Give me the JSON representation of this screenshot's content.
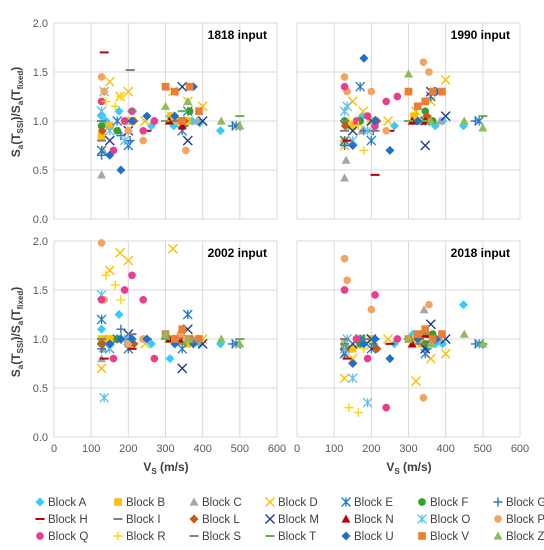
{
  "chart_data": {
    "type": "scatter",
    "xlabel": "V_S (m/s)",
    "ylabel": "S_a(T_SSI)/S_a(T_fixed)",
    "xlim": [
      0,
      600
    ],
    "ylim": [
      0,
      2
    ],
    "xticks": [
      "0",
      "100",
      "200",
      "300",
      "400",
      "500",
      "600"
    ],
    "yticks": [
      "0.0",
      "0.5",
      "1.0",
      "1.5",
      "2.0"
    ],
    "grid": true,
    "legend_position": "bottom",
    "panels": [
      {
        "title": "1818 input"
      },
      {
        "title": "1990 input"
      },
      {
        "title": "2002 input"
      },
      {
        "title": "2018 input"
      }
    ],
    "series": [
      {
        "name": "Block A",
        "marker": "diamond",
        "color": "#33CCFF",
        "x": [
          128,
          140,
          175,
          200,
          262,
          312,
          322,
          372,
          392,
          448
        ],
        "values": [
          [
            1.05,
            1.0,
            1.1,
            1.0,
            0.95,
            1.05,
            0.95,
            1.0,
            0.98,
            0.9
          ],
          [
            1.0,
            0.95,
            1.05,
            1.0,
            0.95,
            1.0,
            1.0,
            0.95,
            1.0,
            0.95
          ],
          [
            1.1,
            1.0,
            1.25,
            1.0,
            0.95,
            0.8,
            1.0,
            1.0,
            0.95,
            0.95
          ],
          [
            0.95,
            0.9,
            1.0,
            1.0,
            0.95,
            1.05,
            1.0,
            0.95,
            0.95,
            1.35
          ]
        ]
      },
      {
        "name": "Block B",
        "marker": "square",
        "color": "#FFC000",
        "x": [
          128,
          150,
          200,
          315,
          335,
          358
        ],
        "values": [
          [
            0.85,
            0.95,
            1.0,
            1.05,
            1.0,
            1.0
          ],
          [
            0.8,
            0.95,
            1.0,
            1.05,
            1.0,
            1.0
          ],
          [
            1.0,
            1.0,
            0.95,
            1.0,
            1.0,
            0.95
          ],
          [
            0.95,
            0.9,
            1.0,
            1.0,
            0.95,
            0.95
          ]
        ]
      },
      {
        "name": "Block C",
        "marker": "triangle",
        "color": "#A6A6A6",
        "x": [
          128,
          132,
          175,
          342,
          385
        ],
        "values": [
          [
            0.45,
            0.7,
            0.9,
            1.0,
            1.0
          ],
          [
            0.42,
            0.6,
            0.9,
            1.0,
            1.0
          ],
          [
            0.8,
            0.9,
            1.0,
            1.0,
            1.0
          ],
          [
            0.85,
            0.9,
            1.0,
            1.3,
            1.0
          ]
        ]
      },
      {
        "name": "Block D",
        "marker": "x",
        "color": "#FFC000",
        "x": [
          128,
          150,
          178,
          200,
          245,
          320,
          360,
          400
        ],
        "values": [
          [
            0.7,
            1.4,
            1.25,
            1.3,
            1.0,
            1.3,
            1.2,
            1.15
          ],
          [
            0.75,
            1.2,
            1.1,
            1.0,
            1.0,
            1.1,
            1.2,
            1.42
          ],
          [
            0.7,
            1.7,
            1.88,
            1.8,
            0.95,
            1.92,
            1.0,
            1.0
          ],
          [
            0.6,
            0.8,
            1.0,
            0.95,
            1.0,
            0.57,
            0.8,
            0.85
          ]
        ]
      },
      {
        "name": "Block E",
        "marker": "star",
        "color": "#1F77D0",
        "x": [
          128,
          170,
          200,
          345,
          360,
          490
        ],
        "values": [
          [
            0.7,
            1.0,
            0.75,
            0.9,
            1.1,
            0.95
          ],
          [
            0.8,
            1.35,
            0.8,
            1.0,
            1.25,
            1.0
          ],
          [
            1.2,
            1.0,
            0.9,
            0.9,
            1.25,
            0.95
          ],
          [
            0.85,
            1.0,
            0.9,
            0.85,
            1.0,
            0.95
          ]
        ]
      },
      {
        "name": "Block F",
        "marker": "circle",
        "color": "#33A02C",
        "x": [
          128,
          170,
          345,
          365
        ],
        "values": [
          [
            0.95,
            0.9,
            1.0,
            1.1
          ],
          [
            1.0,
            1.0,
            1.1,
            1.0
          ],
          [
            0.95,
            1.0,
            1.0,
            1.0
          ],
          [
            0.9,
            0.95,
            0.95,
            1.05
          ]
        ]
      },
      {
        "name": "Block G",
        "marker": "plus",
        "color": "#2E75B6",
        "x": [
          128,
          180,
          205,
          350,
          480
        ],
        "values": [
          [
            0.65,
            0.85,
            0.8,
            1.0,
            0.95
          ],
          [
            0.75,
            0.9,
            0.9,
            1.05,
            1.0
          ],
          [
            0.9,
            1.1,
            1.0,
            1.0,
            0.95
          ],
          [
            0.95,
            1.0,
            0.95,
            0.9,
            0.95
          ]
        ]
      },
      {
        "name": "Block H",
        "marker": "dash",
        "color": "#C00000",
        "x": [
          135,
          210,
          250
        ],
        "values": [
          [
            1.7,
            1.0,
            0.9
          ],
          [
            0.8,
            0.45,
            0.9
          ],
          [
            0.8,
            0.9,
            1.0
          ],
          [
            0.8,
            0.9,
            0.95
          ]
        ]
      },
      {
        "name": "Block I",
        "marker": "dash",
        "color": "#7F7F7F",
        "x": [
          128,
          205,
          330,
          350
        ],
        "values": [
          [
            0.8,
            1.52,
            1.0,
            0.95
          ],
          [
            0.9,
            0.9,
            1.0,
            1.0
          ],
          [
            0.95,
            1.0,
            1.0,
            1.0
          ],
          [
            0.9,
            1.0,
            1.0,
            0.95
          ]
        ]
      },
      {
        "name": "Block L",
        "marker": "diamond",
        "color": "#C55A11",
        "x": [
          130,
          215,
          350
        ],
        "values": [
          [
            0.9,
            1.0,
            1.0
          ],
          [
            0.95,
            1.0,
            1.05
          ],
          [
            0.95,
            0.95,
            1.0
          ],
          [
            0.9,
            0.9,
            1.05
          ]
        ]
      },
      {
        "name": "Block M",
        "marker": "x",
        "color": "#1F3A93",
        "x": [
          150,
          200,
          345,
          360,
          400
        ],
        "values": [
          [
            0.8,
            0.9,
            1.35,
            0.8,
            1.0
          ],
          [
            0.9,
            1.0,
            0.75,
            1.3,
            1.05
          ],
          [
            0.9,
            1.05,
            0.7,
            1.1,
            0.95
          ],
          [
            0.95,
            1.0,
            0.9,
            1.15,
            1.0
          ]
        ]
      },
      {
        "name": "Block N",
        "marker": "triangle",
        "color": "#C00000",
        "x": [
          310,
          345
        ],
        "values": [
          [
            1.0,
            0.95
          ],
          [
            1.0,
            1.0
          ],
          [
            1.0,
            1.0
          ],
          [
            0.95,
            1.05
          ]
        ]
      },
      {
        "name": "Block O",
        "marker": "star",
        "color": "#5BC0EB",
        "x": [
          128,
          135,
          150,
          190
        ],
        "values": [
          [
            1.1,
            1.3,
            0.9,
            0.8
          ],
          [
            1.1,
            1.15,
            0.8,
            0.9
          ],
          [
            1.45,
            0.4,
            0.9,
            1.0
          ],
          [
            0.9,
            1.0,
            0.6,
            0.35
          ]
        ]
      },
      {
        "name": "Block P",
        "marker": "circle",
        "color": "#F4A460",
        "x": [
          128,
          135,
          200,
          240,
          340,
          355
        ],
        "values": [
          [
            1.45,
            1.3,
            0.9,
            0.8,
            1.0,
            0.7
          ],
          [
            1.45,
            1.3,
            1.3,
            0.9,
            1.6,
            1.5
          ],
          [
            1.98,
            1.4,
            0.95,
            1.0,
            1.05,
            1.0
          ],
          [
            1.82,
            1.6,
            1.3,
            0.3,
            0.4,
            1.35
          ]
        ]
      },
      {
        "name": "Block Q",
        "marker": "circle",
        "color": "#E83E8C",
        "x": [
          128,
          160,
          190,
          210,
          240,
          270
        ],
        "values": [
          [
            1.2,
            0.7,
            1.0,
            1.1,
            0.9,
            1.0
          ],
          [
            1.35,
            1.0,
            1.05,
            0.95,
            1.2,
            1.25
          ],
          [
            1.4,
            0.8,
            1.5,
            1.65,
            1.4,
            0.8
          ],
          [
            1.5,
            1.0,
            0.8,
            1.45,
            0.3,
            1.0
          ]
        ]
      },
      {
        "name": "Block R",
        "marker": "plus",
        "color": "#FFD700",
        "x": [
          140,
          165,
          180
        ],
        "values": [
          [
            1.2,
            1.15,
            1.25
          ],
          [
            1.0,
            0.95,
            0.7
          ],
          [
            1.65,
            1.55,
            1.4
          ],
          [
            0.3,
            0.25,
            0.9
          ]
        ]
      },
      {
        "name": "Block S",
        "marker": "dash",
        "color": "#808080",
        "x": [
          128,
          210,
          330
        ],
        "values": [
          [
            1.0,
            1.1,
            1.0
          ],
          [
            1.0,
            0.9,
            1.0
          ],
          [
            1.0,
            1.05,
            1.0
          ],
          [
            1.0,
            1.0,
            0.95
          ]
        ]
      },
      {
        "name": "Block T",
        "marker": "dash",
        "color": "#70AD47",
        "x": [
          300,
          345,
          500
        ],
        "values": [
          [
            1.0,
            1.1,
            1.05
          ],
          [
            1.0,
            1.0,
            1.05
          ],
          [
            1.0,
            0.95,
            1.0
          ],
          [
            1.0,
            1.05,
            0.95
          ]
        ]
      },
      {
        "name": "Block U",
        "marker": "diamond",
        "color": "#1F6FD0",
        "x": [
          150,
          180,
          210,
          250,
          325,
          375
        ],
        "values": [
          [
            0.65,
            0.5,
            1.0,
            1.05,
            1.05,
            1.35
          ],
          [
            0.75,
            1.64,
            1.0,
            0.7,
            1.0,
            1.3
          ],
          [
            0.95,
            1.0,
            1.0,
            1.0,
            0.95,
            0.95
          ],
          [
            0.75,
            0.95,
            1.0,
            0.8,
            1.0,
            1.0
          ]
        ]
      },
      {
        "name": "Block V",
        "marker": "square",
        "color": "#ED7D31",
        "x": [
          300,
          325,
          345,
          365,
          390
        ],
        "values": [
          [
            1.35,
            1.3,
            1.0,
            1.35,
            1.1
          ],
          [
            1.3,
            1.15,
            1.2,
            1.3,
            1.3
          ],
          [
            1.05,
            1.0,
            1.1,
            1.0,
            1.0
          ],
          [
            1.0,
            1.05,
            1.1,
            1.0,
            1.05
          ]
        ]
      },
      {
        "name": "Block Z",
        "marker": "triangle",
        "color": "#8FBC5A",
        "x": [
          300,
          360,
          450,
          500
        ],
        "values": [
          [
            1.15,
            1.2,
            1.0,
            0.95
          ],
          [
            1.48,
            1.0,
            1.0,
            0.93
          ],
          [
            1.05,
            1.0,
            1.0,
            0.95
          ],
          [
            1.0,
            0.95,
            1.05,
            0.95
          ]
        ]
      }
    ]
  }
}
